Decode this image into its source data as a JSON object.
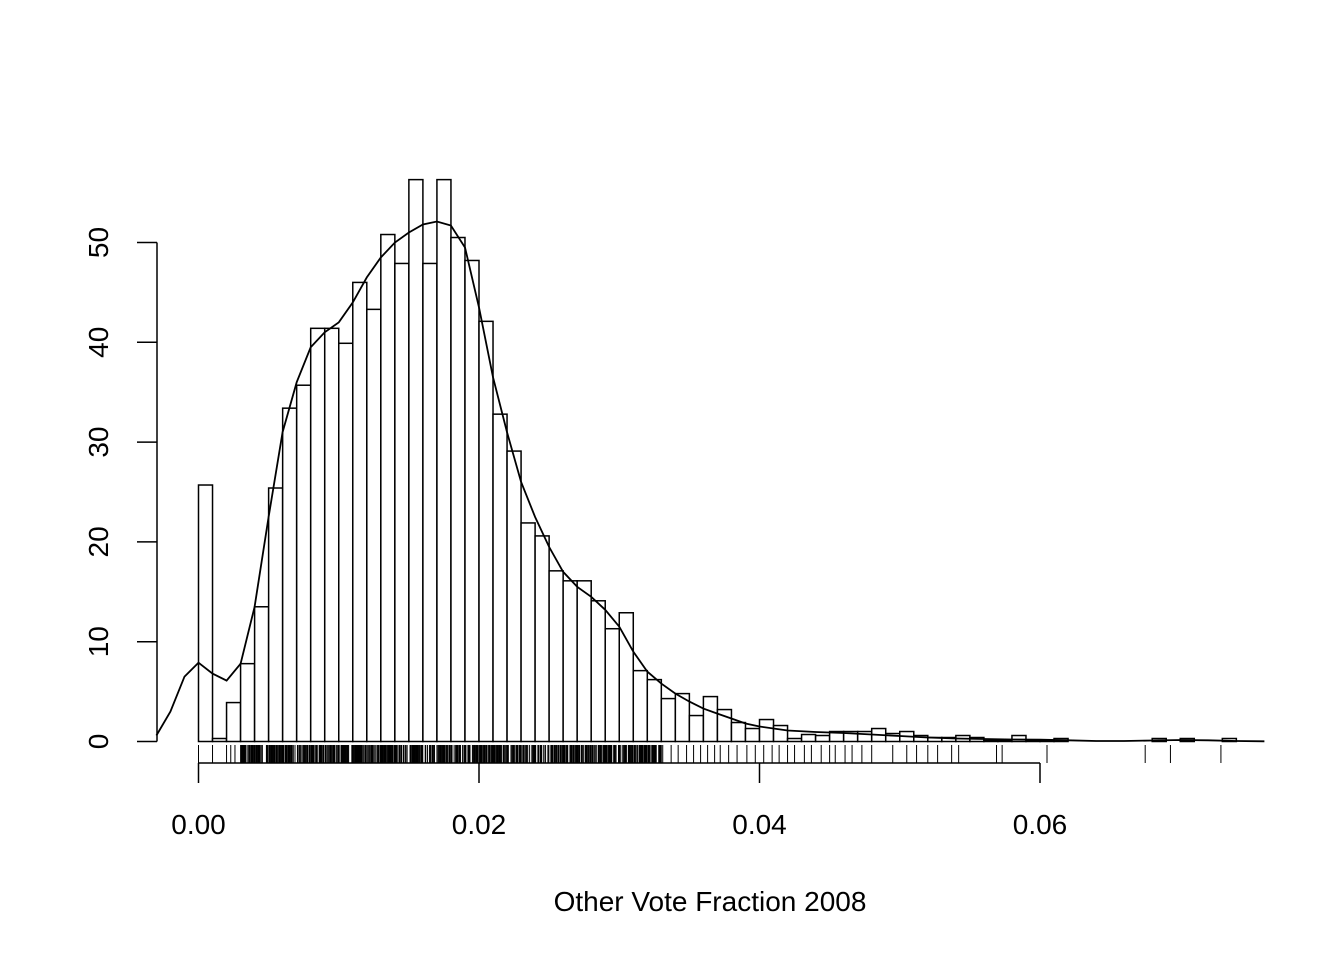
{
  "chart_data": {
    "type": "bar",
    "title": "",
    "xlabel": "Other Vote Fraction 2008",
    "ylabel": "",
    "xlim": [
      -0.003,
      0.076
    ],
    "ylim": [
      0,
      56
    ],
    "x_ticks": [
      0.0,
      0.02,
      0.04,
      0.06
    ],
    "x_tick_labels": [
      "0.00",
      "0.02",
      "0.04",
      "0.06"
    ],
    "y_ticks": [
      0,
      10,
      20,
      30,
      40,
      50
    ],
    "y_tick_labels": [
      "0",
      "10",
      "20",
      "30",
      "40",
      "50"
    ],
    "histogram": {
      "bin_width": 0.001,
      "start": 0.0,
      "values": [
        25.7,
        0.3,
        3.9,
        7.8,
        13.5,
        25.4,
        33.4,
        35.7,
        41.4,
        41.4,
        39.9,
        46.0,
        43.3,
        50.8,
        47.9,
        56.3,
        47.9,
        56.3,
        50.5,
        48.2,
        42.1,
        32.8,
        29.1,
        21.9,
        20.6,
        17.1,
        16.1,
        16.1,
        14.1,
        11.3,
        12.9,
        7.1,
        6.2,
        4.3,
        4.8,
        2.6,
        4.5,
        3.2,
        1.9,
        1.3,
        2.2,
        1.6,
        0.3,
        0.7,
        0.6,
        1.0,
        1.0,
        1.0,
        1.3,
        0.8,
        1.0,
        0.6,
        0.4,
        0.4,
        0.6,
        0.4,
        0.1,
        0.1,
        0.6,
        0.1,
        0.1,
        0.3,
        0.0,
        0.0,
        0.0,
        0.0,
        0.0,
        0.0,
        0.3,
        0.0,
        0.3,
        0.0,
        0.0,
        0.3
      ]
    },
    "density": {
      "x": [
        -0.003,
        -0.002,
        -0.001,
        0.0,
        0.001,
        0.002,
        0.003,
        0.004,
        0.005,
        0.006,
        0.007,
        0.008,
        0.009,
        0.01,
        0.011,
        0.012,
        0.013,
        0.014,
        0.015,
        0.016,
        0.017,
        0.018,
        0.019,
        0.02,
        0.021,
        0.022,
        0.023,
        0.024,
        0.025,
        0.026,
        0.027,
        0.028,
        0.029,
        0.03,
        0.031,
        0.032,
        0.033,
        0.034,
        0.035,
        0.036,
        0.037,
        0.038,
        0.039,
        0.04,
        0.042,
        0.044,
        0.046,
        0.048,
        0.05,
        0.052,
        0.054,
        0.056,
        0.058,
        0.06,
        0.062,
        0.064,
        0.066,
        0.068,
        0.07,
        0.072,
        0.074,
        0.076
      ],
      "y": [
        0.6,
        3.0,
        6.5,
        7.9,
        6.8,
        6.1,
        7.8,
        13.5,
        22.5,
        31.0,
        36.0,
        39.5,
        41.0,
        42.0,
        44.0,
        46.5,
        48.5,
        50.0,
        51.0,
        51.8,
        52.1,
        51.7,
        49.5,
        43.5,
        36.5,
        31.0,
        26.0,
        22.5,
        19.5,
        17.0,
        15.5,
        14.5,
        13.2,
        11.5,
        9.0,
        7.0,
        5.8,
        4.8,
        4.0,
        3.3,
        2.8,
        2.3,
        1.8,
        1.5,
        1.1,
        0.95,
        0.85,
        0.7,
        0.55,
        0.4,
        0.3,
        0.25,
        0.2,
        0.18,
        0.12,
        0.05,
        0.05,
        0.1,
        0.15,
        0.12,
        0.05,
        0.02
      ]
    },
    "rug": {
      "dense_range": [
        0.003,
        0.033
      ],
      "sparse_points": [
        0.0,
        0.001,
        0.002,
        0.0023,
        0.0026,
        0.0285,
        0.0318,
        0.0325,
        0.0331,
        0.0337,
        0.0342,
        0.0348,
        0.0353,
        0.0358,
        0.0363,
        0.0368,
        0.0372,
        0.0378,
        0.0384,
        0.0391,
        0.0397,
        0.0403,
        0.0409,
        0.0414,
        0.042,
        0.0425,
        0.0432,
        0.0437,
        0.0444,
        0.045,
        0.0454,
        0.0461,
        0.0466,
        0.0473,
        0.048,
        0.0495,
        0.0505,
        0.0512,
        0.052,
        0.0527,
        0.0537,
        0.0542,
        0.0569,
        0.0573,
        0.0605,
        0.0675,
        0.0693,
        0.0729
      ]
    }
  }
}
